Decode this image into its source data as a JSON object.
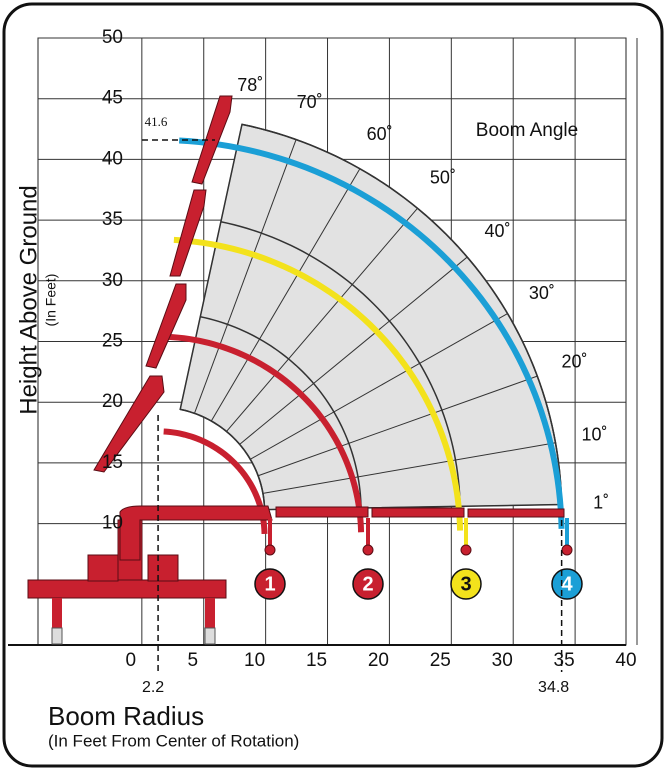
{
  "chart_data": {
    "type": "boom-range",
    "y_label": "Height Above Ground",
    "y_sublabel": "(In Feet)",
    "x_label": "Boom Radius",
    "x_sublabel": "(In Feet From Center of Rotation)",
    "angle_title": "Boom Angle",
    "xlim": [
      -7.5,
      40
    ],
    "ylim": [
      0,
      50
    ],
    "xticks": [
      0,
      5,
      10,
      15,
      20,
      25,
      30,
      35,
      40
    ],
    "yticks": [
      10,
      15,
      20,
      25,
      30,
      35,
      40,
      45,
      50
    ],
    "grid": true,
    "angles": [
      78,
      70,
      60,
      50,
      40,
      30,
      20,
      10,
      1
    ],
    "angle_labels": [
      "78˚",
      "70˚",
      "60˚",
      "50˚",
      "40˚",
      "30˚",
      "20˚",
      "10˚",
      "1˚"
    ],
    "height_marker": 41.6,
    "radius_markers": [
      2.2,
      34.8
    ],
    "sections": [
      {
        "name": "1",
        "color": "#c8202f"
      },
      {
        "name": "2",
        "color": "#c8202f"
      },
      {
        "name": "3",
        "color": "#f3e21c"
      },
      {
        "name": "4",
        "color": "#1b9fd6"
      }
    ]
  }
}
